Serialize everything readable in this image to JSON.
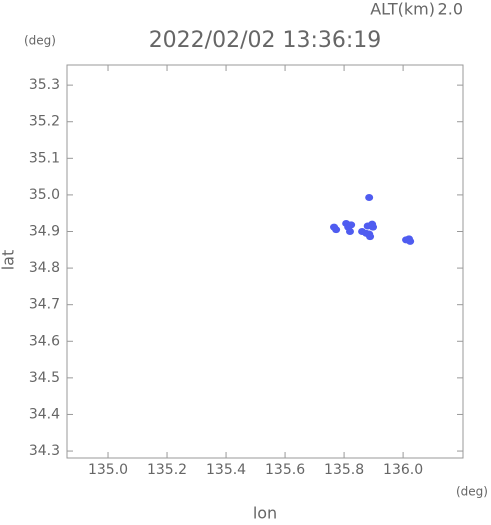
{
  "chart_data": {
    "type": "scatter",
    "title": "2022/02/02 13:36:19",
    "alt_label": "ALT(km)",
    "alt_value": "2.0",
    "y_unit": "(deg)",
    "x_unit": "(deg)",
    "xlabel": "lon",
    "ylabel": "lat",
    "xlim": [
      134.861,
      136.203
    ],
    "ylim": [
      34.281,
      35.355
    ],
    "xticks": [
      {
        "value": 135,
        "label": "135.0"
      },
      135.2,
      135.4,
      135.6,
      135.8,
      {
        "value": 136,
        "label": "136.0"
      }
    ],
    "yticks": [
      34.3,
      34.4,
      34.5,
      34.6,
      34.7,
      34.8,
      34.9,
      {
        "value": 35,
        "label": "35.0"
      },
      35.1,
      35.2,
      35.3
    ],
    "color": "#4f5cf0",
    "x": [
      135.766,
      135.773,
      135.807,
      135.814,
      135.82,
      135.824,
      135.861,
      135.875,
      135.885,
      135.895,
      135.898,
      135.88,
      135.888,
      136.01,
      136.02,
      136.024,
      135.885
    ],
    "values": [
      34.912,
      34.905,
      34.922,
      34.912,
      34.9,
      34.918,
      34.9,
      34.895,
      34.893,
      34.92,
      34.912,
      34.915,
      34.886,
      34.877,
      34.88,
      34.873,
      34.993
    ]
  }
}
